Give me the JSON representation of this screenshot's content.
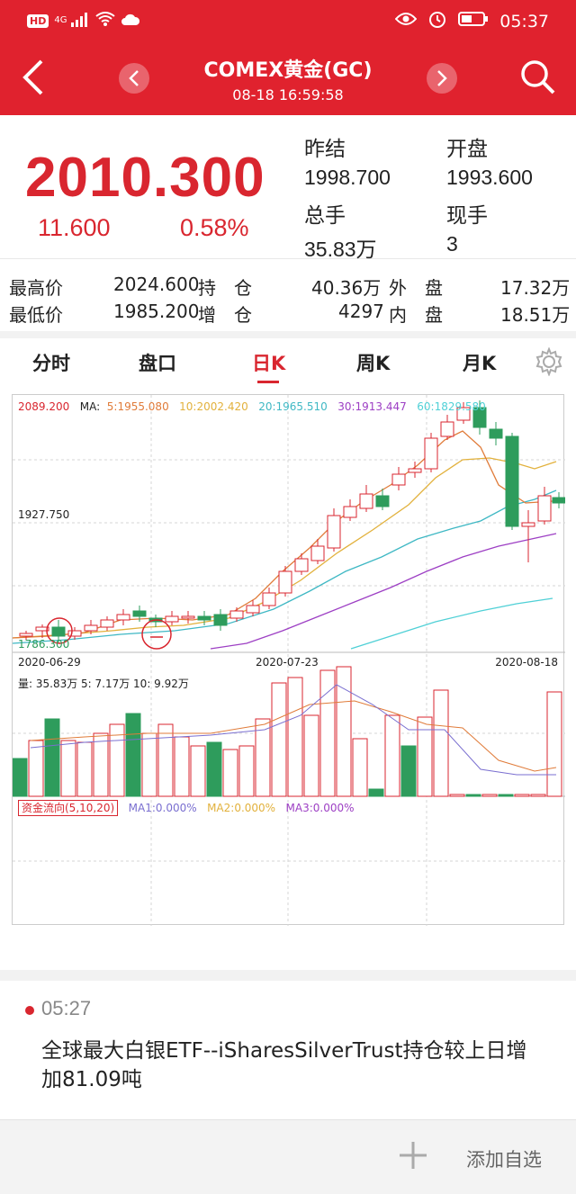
{
  "status_bar": {
    "network": "HD",
    "signal": "4G",
    "time": "05:37"
  },
  "header": {
    "title": "COMEX黄金(GC)",
    "datetime": "08-18 16:59:58",
    "colors": {
      "brand_red": "#e0222e"
    }
  },
  "quote": {
    "price": "2010.300",
    "change": "11.600",
    "change_pct": "0.58%",
    "prev_close_label": "昨结",
    "prev_close": "1998.700",
    "open_label": "开盘",
    "open": "1993.600",
    "volume_label": "总手",
    "volume": "35.83万",
    "current_label": "现手",
    "current": "3"
  },
  "stats": {
    "high_label": "最高价",
    "high": "2024.600",
    "low_label": "最低价",
    "low": "1985.200",
    "oi_label": "持　仓",
    "oi": "40.36万",
    "oi_chg_label": "增　仓",
    "oi_chg": "4297",
    "outer_label": "外　盘",
    "outer": "17.32万",
    "inner_label": "内　盘",
    "inner": "18.51万"
  },
  "tabs": [
    {
      "label": "分时"
    },
    {
      "label": "盘口"
    },
    {
      "label": "日K",
      "active": true
    },
    {
      "label": "周K"
    },
    {
      "label": "月K"
    }
  ],
  "chart": {
    "ma_label": "MA:",
    "ma5": "5:1955.080",
    "ma10": "10:2002.420",
    "ma20": "20:1965.510",
    "ma30": "30:1913.447",
    "ma60": "60:1829.580",
    "y_top": "2089.200",
    "y_mid": "1927.750",
    "y_bottom": "1786.300",
    "dates": [
      "2020-06-29",
      "2020-07-23",
      "2020-08-18"
    ],
    "vol_label": "量: 35.83万 5: 7.17万 10: 9.92万",
    "flow_label": "资金流向(5,10,20)",
    "flow_ma1": "MA1:0.000%",
    "flow_ma2": "MA2:0.000%",
    "flow_ma3": "MA3:0.000%",
    "colors": {
      "up": "#d9262f",
      "down": "#2e9c5c",
      "ma5": "#e07b39",
      "ma10": "#e2b13c",
      "ma20": "#3fb8c4",
      "ma30": "#9d3fc4",
      "ma60": "#4fd0d6"
    }
  },
  "news": {
    "time": "05:27",
    "text": "全球最大白银ETF--iSharesSilverTrust持仓较上日增加81.09吨"
  },
  "bottom": {
    "add_label": "添加自选"
  }
}
